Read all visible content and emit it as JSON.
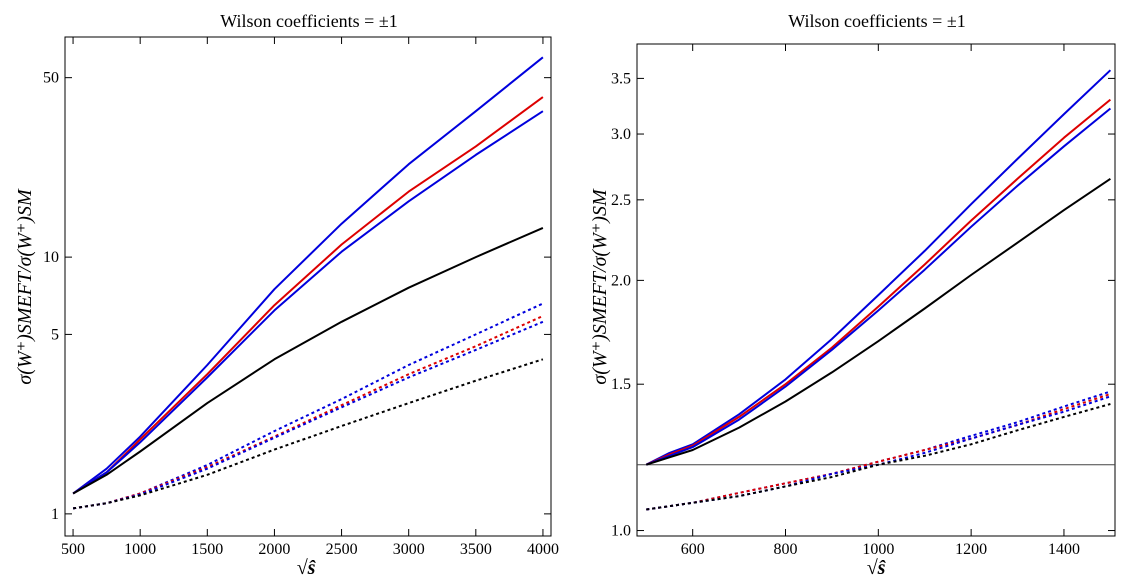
{
  "chart_data": [
    {
      "type": "line",
      "title": "Wilson coefficients = ±1",
      "xlabel": "√ŝ",
      "ylabel": "σ(W⁺)SMEFT/σ(W⁺)SM",
      "y_scale": "log",
      "xlim": [
        440,
        4060
      ],
      "ylim": [
        0.82,
        72
      ],
      "x_ticks": [
        500,
        1000,
        1500,
        2000,
        2500,
        3000,
        3500,
        4000
      ],
      "x_tick_labels": [
        "500",
        "1000",
        "1500",
        "2000",
        "2500",
        "3000",
        "3500",
        "4000"
      ],
      "y_ticks": [
        1,
        5,
        10,
        50
      ],
      "y_tick_labels": [
        "1",
        "5",
        "10",
        "50"
      ],
      "grid": false,
      "series": [
        {
          "color": "#0000dd",
          "style": "solid",
          "x": [
            500,
            750,
            1000,
            1500,
            2000,
            2500,
            3000,
            3500,
            4000
          ],
          "values": [
            1.2,
            1.5,
            2.0,
            3.8,
            7.5,
            13.5,
            23,
            37,
            60
          ]
        },
        {
          "color": "#dd0000",
          "style": "solid",
          "x": [
            500,
            750,
            1000,
            1500,
            2000,
            2500,
            3000,
            3500,
            4000
          ],
          "values": [
            1.2,
            1.45,
            1.95,
            3.5,
            6.5,
            11.2,
            18,
            27,
            42
          ]
        },
        {
          "color": "#0000dd",
          "style": "solid",
          "x": [
            500,
            750,
            1000,
            1500,
            2000,
            2500,
            3000,
            3500,
            4000
          ],
          "values": [
            1.2,
            1.45,
            1.9,
            3.4,
            6.2,
            10.5,
            16.5,
            25,
            37
          ]
        },
        {
          "color": "#000000",
          "style": "solid",
          "x": [
            500,
            750,
            1000,
            1500,
            2000,
            2500,
            3000,
            3500,
            4000
          ],
          "values": [
            1.2,
            1.42,
            1.75,
            2.7,
            4.0,
            5.6,
            7.6,
            10.0,
            13.0
          ]
        },
        {
          "color": "#0000dd",
          "style": "dotted",
          "x": [
            500,
            750,
            1000,
            1500,
            2000,
            2500,
            3000,
            3500,
            4000
          ],
          "values": [
            1.05,
            1.1,
            1.2,
            1.55,
            2.1,
            2.8,
            3.8,
            5.0,
            6.6
          ]
        },
        {
          "color": "#dd0000",
          "style": "dotted",
          "x": [
            500,
            750,
            1000,
            1500,
            2000,
            2500,
            3000,
            3500,
            4000
          ],
          "values": [
            1.05,
            1.1,
            1.2,
            1.52,
            2.0,
            2.65,
            3.5,
            4.5,
            5.9
          ]
        },
        {
          "color": "#0000dd",
          "style": "dotted",
          "x": [
            500,
            750,
            1000,
            1500,
            2000,
            2500,
            3000,
            3500,
            4000
          ],
          "values": [
            1.05,
            1.1,
            1.19,
            1.5,
            1.98,
            2.6,
            3.4,
            4.35,
            5.6
          ]
        },
        {
          "color": "#000000",
          "style": "dotted",
          "x": [
            500,
            750,
            1000,
            1500,
            2000,
            2500,
            3000,
            3500,
            4000
          ],
          "values": [
            1.05,
            1.1,
            1.18,
            1.42,
            1.78,
            2.2,
            2.7,
            3.3,
            4.0
          ]
        }
      ]
    },
    {
      "type": "line",
      "title": "Wilson coefficients = ±1",
      "xlabel": "√ŝ",
      "ylabel": "σ(W⁺)SMEFT/σ(W⁺)SM",
      "y_scale": "log",
      "xlim": [
        480,
        1510
      ],
      "ylim": [
        0.985,
        3.85
      ],
      "x_ticks": [
        600,
        800,
        1000,
        1200,
        1400
      ],
      "x_tick_labels": [
        "600",
        "800",
        "1000",
        "1200",
        "1400"
      ],
      "y_ticks": [
        1.0,
        1.5,
        2.0,
        2.5,
        3.0,
        3.5
      ],
      "y_tick_labels": [
        "1.0",
        "1.5",
        "2.0",
        "2.5",
        "3.0",
        "3.5"
      ],
      "reference_line": 1.2,
      "grid": false,
      "series": [
        {
          "color": "#0000dd",
          "style": "solid",
          "x": [
            500,
            550,
            600,
            700,
            800,
            900,
            1000,
            1100,
            1200,
            1300,
            1400,
            1500
          ],
          "values": [
            1.2,
            1.24,
            1.27,
            1.38,
            1.52,
            1.7,
            1.92,
            2.17,
            2.47,
            2.8,
            3.17,
            3.58
          ]
        },
        {
          "color": "#dd0000",
          "style": "solid",
          "x": [
            500,
            550,
            600,
            700,
            800,
            900,
            1000,
            1100,
            1200,
            1300,
            1400,
            1500
          ],
          "values": [
            1.2,
            1.235,
            1.265,
            1.37,
            1.5,
            1.66,
            1.86,
            2.09,
            2.36,
            2.65,
            2.97,
            3.3
          ]
        },
        {
          "color": "#0000dd",
          "style": "solid",
          "x": [
            500,
            550,
            600,
            700,
            800,
            900,
            1000,
            1100,
            1200,
            1300,
            1400,
            1500
          ],
          "values": [
            1.2,
            1.23,
            1.26,
            1.36,
            1.49,
            1.65,
            1.84,
            2.06,
            2.32,
            2.6,
            2.9,
            3.22
          ]
        },
        {
          "color": "#000000",
          "style": "solid",
          "x": [
            500,
            550,
            600,
            700,
            800,
            900,
            1000,
            1100,
            1200,
            1300,
            1400,
            1500
          ],
          "values": [
            1.2,
            1.225,
            1.25,
            1.33,
            1.43,
            1.55,
            1.69,
            1.85,
            2.03,
            2.22,
            2.43,
            2.65
          ]
        },
        {
          "color": "#0000dd",
          "style": "dotted",
          "x": [
            500,
            600,
            700,
            800,
            900,
            1000,
            1100,
            1200,
            1300,
            1400,
            1500
          ],
          "values": [
            1.06,
            1.08,
            1.11,
            1.14,
            1.17,
            1.21,
            1.25,
            1.3,
            1.35,
            1.41,
            1.47
          ]
        },
        {
          "color": "#dd0000",
          "style": "dotted",
          "x": [
            500,
            600,
            700,
            800,
            900,
            1000,
            1100,
            1200,
            1300,
            1400,
            1500
          ],
          "values": [
            1.06,
            1.08,
            1.11,
            1.14,
            1.17,
            1.21,
            1.25,
            1.29,
            1.34,
            1.4,
            1.46
          ]
        },
        {
          "color": "#0000dd",
          "style": "dotted",
          "x": [
            500,
            600,
            700,
            800,
            900,
            1000,
            1100,
            1200,
            1300,
            1400,
            1500
          ],
          "values": [
            1.06,
            1.08,
            1.1,
            1.13,
            1.17,
            1.2,
            1.24,
            1.29,
            1.34,
            1.39,
            1.45
          ]
        },
        {
          "color": "#000000",
          "style": "dotted",
          "x": [
            500,
            600,
            700,
            800,
            900,
            1000,
            1100,
            1200,
            1300,
            1400,
            1500
          ],
          "values": [
            1.06,
            1.08,
            1.1,
            1.13,
            1.16,
            1.2,
            1.23,
            1.27,
            1.32,
            1.37,
            1.42
          ]
        }
      ]
    }
  ]
}
